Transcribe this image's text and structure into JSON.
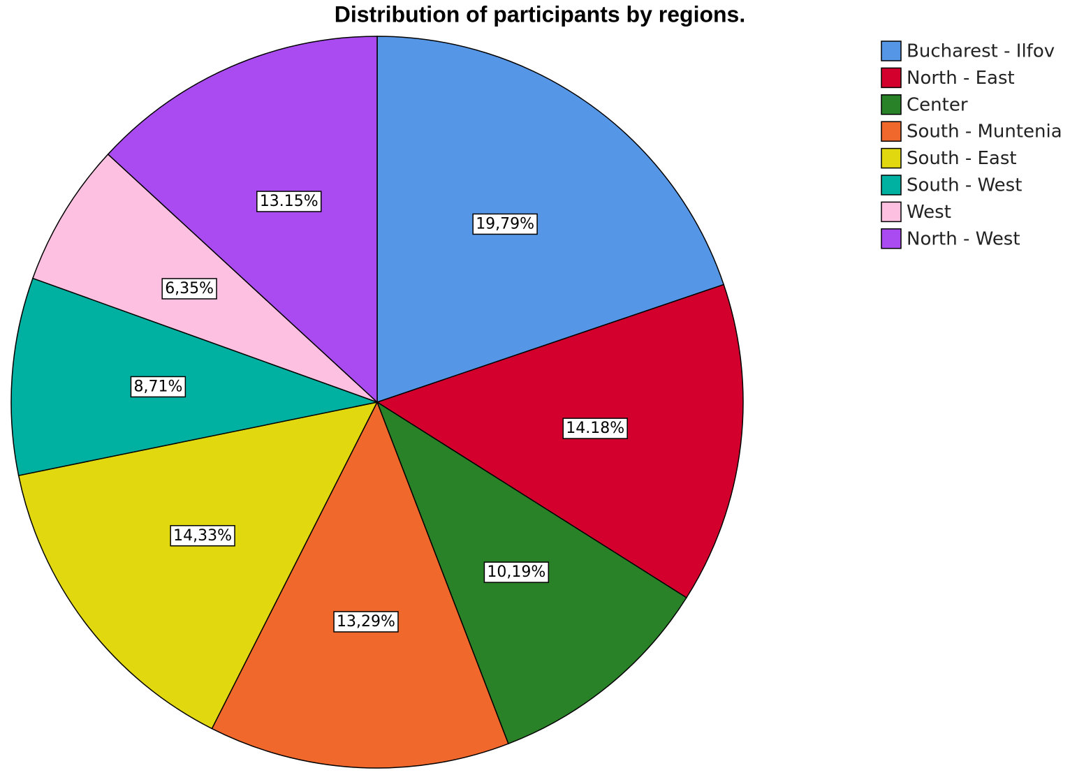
{
  "chart_data": {
    "type": "pie",
    "title": "Distribution of participants by regions.",
    "categories": [
      "Bucharest - Ilfov",
      "North - East",
      "Center",
      "South - Muntenia",
      "South - East",
      "South - West",
      "West",
      "North - West"
    ],
    "values": [
      19.79,
      14.18,
      10.19,
      13.29,
      14.33,
      8.71,
      6.35,
      13.15
    ],
    "value_labels": [
      "19,79%",
      "14.18%",
      "10,19%",
      "13,29%",
      "14,33%",
      "8,71%",
      "6,35%",
      "13.15%"
    ],
    "colors": [
      "#5596e6",
      "#d3002d",
      "#2a8228",
      "#f0682c",
      "#e2d80f",
      "#00b0a0",
      "#fec0e0",
      "#a94bf1"
    ]
  }
}
